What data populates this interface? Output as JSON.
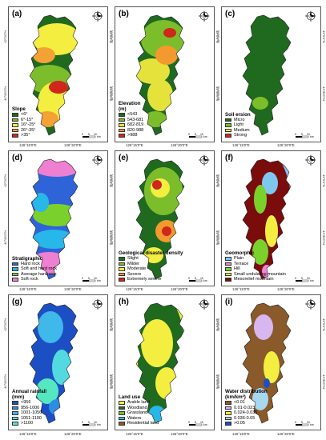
{
  "panels": [
    {
      "letter": "(a)",
      "legend_title": "Slope",
      "legend_unit": "",
      "items": [
        {
          "label": "<6°",
          "color": "#1f6a1f"
        },
        {
          "label": "6°-15°",
          "color": "#7cbd2b"
        },
        {
          "label": "16°-25°",
          "color": "#f4ee41"
        },
        {
          "label": "26°-35°",
          "color": "#f3a233"
        },
        {
          "label": ">35°",
          "color": "#d0261c"
        }
      ]
    },
    {
      "letter": "(b)",
      "legend_title": "Elevation",
      "legend_unit": "(m)",
      "items": [
        {
          "label": "<543",
          "color": "#1f6a1f"
        },
        {
          "label": "543-681",
          "color": "#7cbd2b"
        },
        {
          "label": "682-819",
          "color": "#e6e23c"
        },
        {
          "label": "820-988",
          "color": "#f39a2f"
        },
        {
          "label": ">988",
          "color": "#d0261c"
        }
      ]
    },
    {
      "letter": "(c)",
      "legend_title": "Soil ersion",
      "legend_unit": "",
      "items": [
        {
          "label": "Micro",
          "color": "#1f6a1f"
        },
        {
          "label": "Light",
          "color": "#7cbd2b"
        },
        {
          "label": "Medium",
          "color": "#f4ee41"
        },
        {
          "label": "Strong",
          "color": "#d0261c"
        }
      ]
    },
    {
      "letter": "(d)",
      "legend_title": "Stratigraphic",
      "legend_unit": "",
      "items": [
        {
          "label": "Hard rock",
          "color": "#2f63d8"
        },
        {
          "label": "Soft and hard rock",
          "color": "#27b7e8"
        },
        {
          "label": "Average hardness",
          "color": "#7bd12b"
        },
        {
          "label": "Soft rock",
          "color": "#ef7fd0"
        }
      ]
    },
    {
      "letter": "(e)",
      "legend_title": "Geological disaster density",
      "legend_unit": "",
      "items": [
        {
          "label": "Slight",
          "color": "#1f6a1f"
        },
        {
          "label": "Milder",
          "color": "#7cbd2b"
        },
        {
          "label": "Moderate",
          "color": "#f4ee41"
        },
        {
          "label": "Severe",
          "color": "#f39a2f"
        },
        {
          "label": "Extremely severe",
          "color": "#d0261c"
        }
      ]
    },
    {
      "letter": "(f)",
      "legend_title": "Geomorphic",
      "legend_unit": "",
      "items": [
        {
          "label": "Plain",
          "color": "#7ec8f0"
        },
        {
          "label": "Terrace",
          "color": "#e88ad6"
        },
        {
          "label": "Hill",
          "color": "#7bd12b"
        },
        {
          "label": "Small undulating mountain",
          "color": "#f4ee41"
        },
        {
          "label": "Mesorelief mountain",
          "color": "#7a0c0c"
        }
      ]
    },
    {
      "letter": "(g)",
      "legend_title": "Annual rainfall",
      "legend_unit": "(mm)",
      "items": [
        {
          "label": "<956",
          "color": "#1c4fc4"
        },
        {
          "label": "956-1000",
          "color": "#2f8de0"
        },
        {
          "label": "1001-1050",
          "color": "#3fb8ea"
        },
        {
          "label": "1051-1100",
          "color": "#52dae0"
        },
        {
          "label": ">1100",
          "color": "#55e8c0"
        }
      ]
    },
    {
      "letter": "(h)",
      "legend_title": "Land use",
      "legend_unit": "",
      "items": [
        {
          "label": "Arable land",
          "color": "#f4ee41"
        },
        {
          "label": "Woodland",
          "color": "#1f6a1f"
        },
        {
          "label": "Grassland",
          "color": "#7cbd2b"
        },
        {
          "label": "Waters",
          "color": "#27b7e8"
        },
        {
          "label": "Residential land",
          "color": "#8a5a2a"
        }
      ]
    },
    {
      "letter": "(i)",
      "legend_title": "Water distribution",
      "legend_unit": "(km/km²)",
      "items": [
        {
          "label": "<0.01",
          "color": "#8a5a2a"
        },
        {
          "label": "0.01-0.023",
          "color": "#d8b7f0"
        },
        {
          "label": "0.024-0.035",
          "color": "#f4ee41"
        },
        {
          "label": "0.036-0.05",
          "color": "#a8d8f0"
        },
        {
          "label": ">0.05",
          "color": "#1c4fc4"
        }
      ]
    }
  ],
  "axis": {
    "lon_left": "126°15'0\"E",
    "lon_right": "126°20'0\"E",
    "lat_top": "42°0'0\"N",
    "lat_bottom": "41°55'0\"N"
  },
  "scale": {
    "labels": [
      "0",
      "5",
      "10"
    ],
    "unit": "km"
  },
  "compass_label": "N"
}
